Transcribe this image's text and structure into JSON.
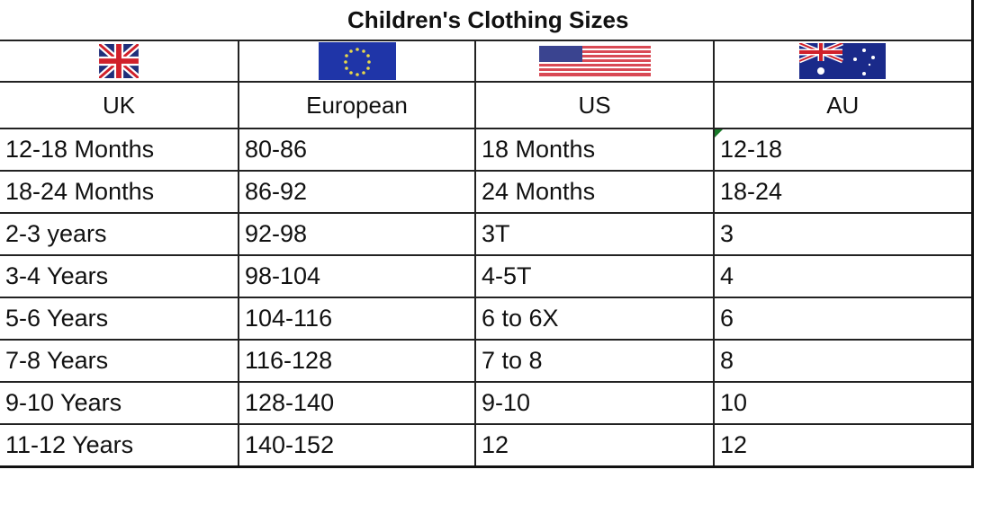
{
  "title": "Children's Clothing Sizes",
  "columns": [
    {
      "label": "UK",
      "flag": "uk-flag"
    },
    {
      "label": "European",
      "flag": "eu-flag"
    },
    {
      "label": "US",
      "flag": "us-flag"
    },
    {
      "label": "AU",
      "flag": "au-flag"
    }
  ],
  "rows": [
    [
      "12-18 Months",
      "80-86",
      "18 Months",
      "12-18"
    ],
    [
      "18-24 Months",
      "86-92",
      "24 Months",
      "18-24"
    ],
    [
      "2-3 years",
      "92-98",
      "3T",
      "3"
    ],
    [
      "3-4 Years",
      "98-104",
      "4-5T",
      "4"
    ],
    [
      "5-6 Years",
      "104-116",
      "6 to 6X",
      "6"
    ],
    [
      "7-8 Years",
      "116-128",
      "7 to 8",
      "8"
    ],
    [
      "9-10 Years",
      "128-140",
      "9-10",
      "10"
    ],
    [
      "11-12 Years",
      "140-152",
      "12",
      "12"
    ]
  ]
}
